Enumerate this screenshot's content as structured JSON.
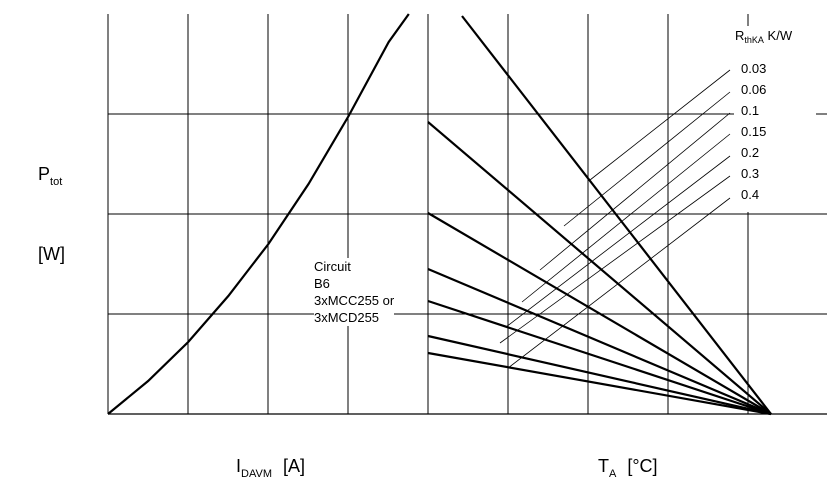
{
  "y_label": {
    "main": "P",
    "sub": "tot",
    "unit": "[W]"
  },
  "x_left_label": {
    "main": "I",
    "sub": "DAVM",
    "unit": "[A]"
  },
  "x_right_label": {
    "main": "T",
    "sub": "A",
    "unit": "[°C]"
  },
  "legend_title": {
    "main": "R",
    "sub": "thKA",
    "unit": "K/W"
  },
  "legend_values": [
    "0.03",
    "0.06",
    "0.1",
    "0.15",
    "0.2",
    "0.3",
    "0.4"
  ],
  "circuit_lines": [
    "Circuit",
    "B6",
    "3xMCC255 or",
    "3xMCD255"
  ],
  "chart_data": {
    "type": "line",
    "grid": true,
    "left_panel": {
      "xlabel": "I_DAVM [A]",
      "ylabel": "P_tot [W]",
      "xlim": [
        0,
        3.75
      ],
      "ylim": [
        0,
        4
      ],
      "curve": {
        "x": [
          0,
          0.5,
          1.0,
          1.5,
          2.0,
          2.5,
          3.0,
          3.5,
          3.75
        ],
        "y": [
          0,
          0.33,
          0.72,
          1.18,
          1.7,
          2.3,
          2.98,
          3.72,
          4.0
        ]
      }
    },
    "right_panel": {
      "xlabel": "T_A [°C]",
      "xlim": [
        0,
        4
      ],
      "converge_point": [
        3.5,
        0
      ],
      "series": [
        {
          "name": "0.03",
          "y_at_x0": 4.0
        },
        {
          "name": "0.06",
          "y_at_x0": 2.92
        },
        {
          "name": "0.1",
          "y_at_x0": 2.01
        },
        {
          "name": "0.15",
          "y_at_x0": 1.45
        },
        {
          "name": "0.2",
          "y_at_x0": 1.13
        },
        {
          "name": "0.3",
          "y_at_x0": 0.78
        },
        {
          "name": "0.4",
          "y_at_x0": 0.61
        }
      ]
    }
  }
}
